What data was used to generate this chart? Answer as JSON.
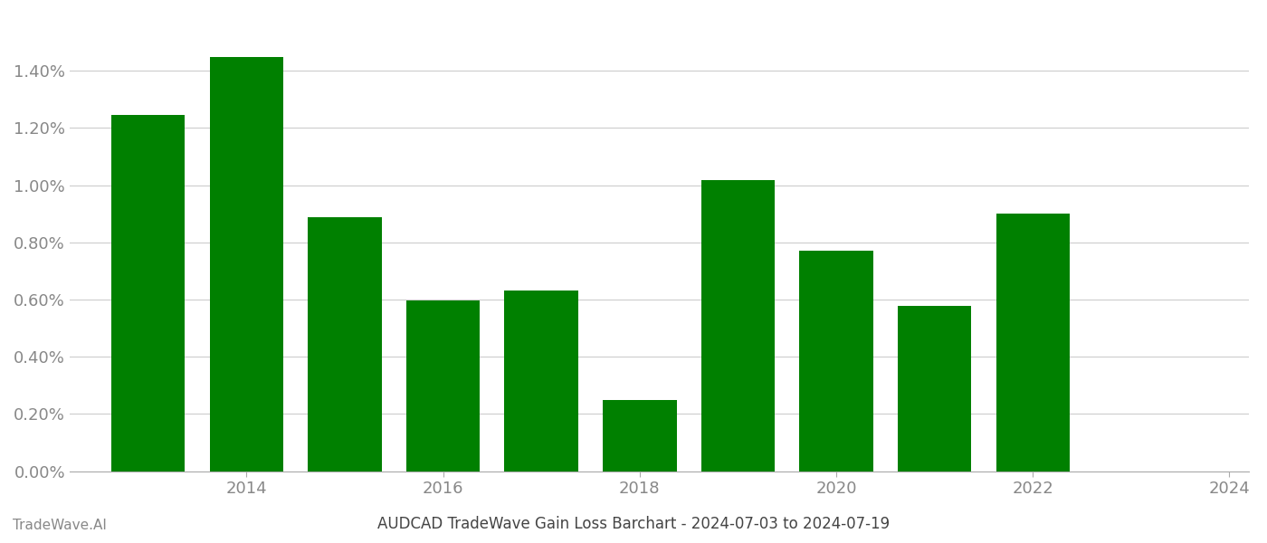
{
  "years": [
    2013,
    2014,
    2015,
    2016,
    2017,
    2018,
    2019,
    2020,
    2021,
    2022,
    2023
  ],
  "values": [
    0.01245,
    0.01448,
    0.00888,
    0.00598,
    0.00632,
    0.00248,
    0.01018,
    0.0077,
    0.00578,
    0.009,
    0.0
  ],
  "bar_color": "#008000",
  "background_color": "#ffffff",
  "title": "AUDCAD TradeWave Gain Loss Barchart - 2024-07-03 to 2024-07-19",
  "footer_left": "TradeWave.AI",
  "xlabel": "",
  "ylabel": "",
  "ylim_min": 0.0,
  "ylim_max": 0.016,
  "ytick_values": [
    0.0,
    0.002,
    0.004,
    0.006,
    0.008,
    0.01,
    0.012,
    0.014
  ],
  "xtick_positions": [
    2014,
    2016,
    2018,
    2020,
    2022,
    2024
  ],
  "xtick_labels": [
    "2014",
    "2016",
    "2018",
    "2020",
    "2022",
    "2024"
  ],
  "grid_color": "#cccccc",
  "tick_label_color": "#888888",
  "title_color": "#444444",
  "footer_color": "#888888",
  "title_fontsize": 12,
  "tick_fontsize": 13,
  "footer_fontsize": 11
}
